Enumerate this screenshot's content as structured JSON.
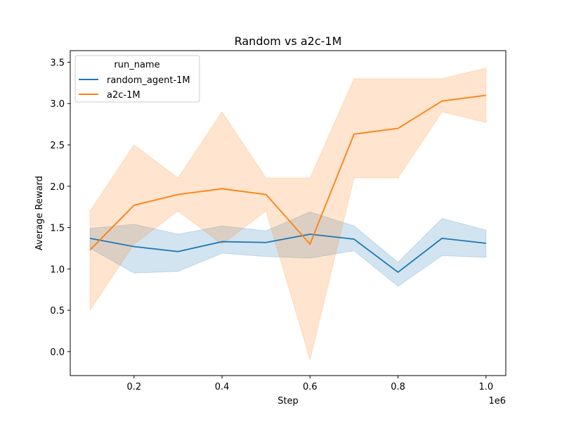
{
  "chart_data": {
    "type": "line",
    "title": "Random vs a2c-1M",
    "xlabel": "Step",
    "ylabel": "Average Reward",
    "x_offset_label": "1e6",
    "x_tick_labels": [
      "0.2",
      "0.4",
      "0.6",
      "0.8",
      "1.0"
    ],
    "x_ticks": [
      200000,
      400000,
      600000,
      800000,
      1000000
    ],
    "y_tick_labels": [
      "0.0",
      "0.5",
      "1.0",
      "1.5",
      "2.0",
      "2.5",
      "3.0",
      "3.5"
    ],
    "y_ticks": [
      0,
      0.5,
      1.0,
      1.5,
      2.0,
      2.5,
      3.0,
      3.5
    ],
    "xlim": [
      55000,
      1045000
    ],
    "ylim": [
      -0.29,
      3.64
    ],
    "grid": false,
    "legend": {
      "title": "run_name",
      "placement": "top-left"
    },
    "x": [
      100000,
      200000,
      300000,
      400000,
      500000,
      600000,
      700000,
      800000,
      900000,
      1000000
    ],
    "series": [
      {
        "name": "random_agent-1M",
        "color": "#1f77b4",
        "values": [
          1.37,
          1.27,
          1.21,
          1.33,
          1.32,
          1.42,
          1.36,
          0.96,
          1.37,
          1.31
        ],
        "lower": [
          1.25,
          0.95,
          0.97,
          1.19,
          1.15,
          1.13,
          1.22,
          0.79,
          1.16,
          1.14
        ],
        "upper": [
          1.49,
          1.54,
          1.42,
          1.52,
          1.46,
          1.69,
          1.52,
          1.08,
          1.61,
          1.47
        ]
      },
      {
        "name": "a2c-1M",
        "color": "#ff7f0e",
        "values": [
          1.23,
          1.77,
          1.9,
          1.97,
          1.9,
          1.3,
          2.63,
          2.7,
          3.03,
          3.1
        ],
        "lower": [
          0.5,
          1.3,
          1.7,
          1.3,
          1.7,
          -0.1,
          2.1,
          2.1,
          2.9,
          2.77
        ],
        "upper": [
          1.7,
          2.5,
          2.1,
          2.9,
          2.1,
          2.1,
          3.3,
          3.3,
          3.3,
          3.43
        ]
      }
    ]
  }
}
